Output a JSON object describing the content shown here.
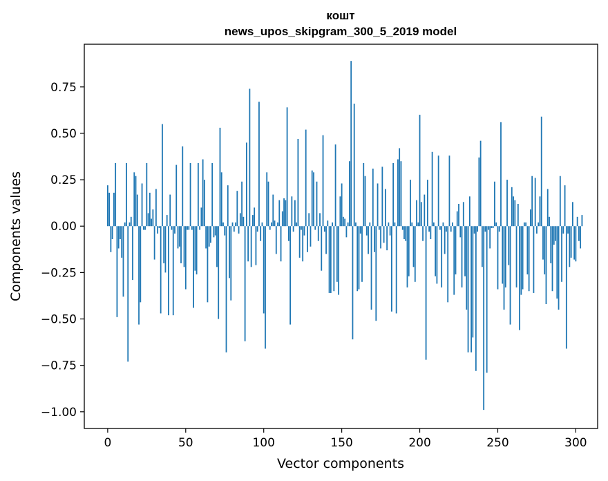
{
  "chart_data": {
    "type": "bar",
    "title_line1": "кошт",
    "title_line2": "news_upos_skipgram_300_5_2019 model",
    "xlabel": "Vector components",
    "ylabel": "Components values",
    "xlim": [
      -15,
      314
    ],
    "ylim": [
      -1.09,
      0.98
    ],
    "x_ticks": [
      0,
      50,
      100,
      150,
      200,
      250,
      300
    ],
    "y_ticks": [
      -1.0,
      -0.75,
      -0.5,
      -0.25,
      0.0,
      0.25,
      0.5,
      0.75
    ],
    "y_tick_labels": [
      "−1.00",
      "−0.75",
      "−0.50",
      "−0.25",
      "0.00",
      "0.25",
      "0.50",
      "0.75"
    ],
    "x_tick_labels": [
      "0",
      "50",
      "100",
      "150",
      "200",
      "250",
      "300"
    ],
    "bar_color": "#1f77b4",
    "values": [
      0.22,
      0.18,
      -0.14,
      -0.07,
      0.18,
      0.34,
      -0.49,
      -0.12,
      -0.07,
      -0.17,
      -0.38,
      0.02,
      0.34,
      -0.73,
      0.02,
      0.05,
      -0.29,
      0.29,
      0.27,
      0.17,
      -0.53,
      -0.41,
      0.23,
      -0.02,
      -0.02,
      0.34,
      0.07,
      0.18,
      0.04,
      0.09,
      -0.18,
      0.2,
      -0.04,
      -0.01,
      -0.47,
      0.55,
      -0.2,
      -0.25,
      0.06,
      -0.48,
      0.17,
      -0.02,
      -0.48,
      -0.04,
      0.33,
      -0.12,
      -0.11,
      -0.2,
      0.43,
      -0.22,
      -0.34,
      -0.02,
      -0.02,
      0.34,
      -0.02,
      -0.44,
      -0.24,
      -0.26,
      0.34,
      -0.02,
      0.1,
      0.36,
      0.25,
      -0.12,
      -0.41,
      -0.11,
      -0.09,
      0.34,
      -0.06,
      -0.05,
      -0.22,
      -0.5,
      0.53,
      0.29,
      0.02,
      -0.05,
      -0.68,
      0.22,
      -0.28,
      -0.4,
      0.02,
      -0.03,
      0.02,
      0.19,
      -0.04,
      0.07,
      0.24,
      0.05,
      -0.62,
      0.45,
      -0.19,
      0.74,
      -0.22,
      0.06,
      0.1,
      -0.21,
      -0.03,
      0.67,
      -0.08,
      0.02,
      -0.47,
      -0.66,
      0.29,
      0.24,
      -0.02,
      0.02,
      0.17,
      0.03,
      -0.15,
      0.02,
      0.14,
      -0.19,
      0.08,
      0.15,
      0.14,
      0.64,
      -0.08,
      -0.53,
      0.16,
      -0.03,
      0.14,
      0.02,
      0.47,
      -0.17,
      -0.02,
      -0.19,
      -0.05,
      0.52,
      -0.14,
      0.07,
      -0.11,
      0.3,
      0.29,
      -0.02,
      0.24,
      -0.08,
      0.07,
      -0.24,
      0.49,
      -0.03,
      -0.15,
      0.03,
      -0.36,
      -0.36,
      0.02,
      -0.35,
      0.44,
      -0.3,
      -0.37,
      0.16,
      0.23,
      0.05,
      0.04,
      -0.06,
      0.02,
      0.35,
      0.89,
      -0.61,
      0.66,
      0.02,
      -0.35,
      -0.34,
      -0.04,
      -0.3,
      0.34,
      0.27,
      -0.05,
      -0.15,
      0.02,
      -0.45,
      0.31,
      -0.14,
      -0.51,
      0.23,
      -0.02,
      -0.12,
      0.32,
      -0.09,
      0.2,
      -0.13,
      0.02,
      -0.05,
      -0.46,
      0.34,
      0.02,
      -0.47,
      0.36,
      0.42,
      0.35,
      -0.02,
      -0.07,
      -0.08,
      -0.33,
      -0.27,
      0.25,
      0.02,
      -0.22,
      -0.3,
      0.14,
      0.02,
      0.6,
      0.13,
      -0.08,
      0.17,
      -0.72,
      0.25,
      -0.03,
      -0.07,
      0.4,
      0.02,
      -0.27,
      -0.31,
      0.38,
      -0.02,
      -0.33,
      0.02,
      -0.15,
      -0.03,
      -0.41,
      0.38,
      -0.03,
      0.02,
      -0.37,
      -0.26,
      0.08,
      0.12,
      -0.06,
      -0.33,
      0.13,
      -0.27,
      -0.45,
      -0.68,
      0.16,
      -0.68,
      -0.6,
      -0.04,
      -0.78,
      -0.03,
      0.37,
      0.46,
      -0.22,
      -0.99,
      -0.03,
      -0.79,
      -0.02,
      -0.12,
      -0.01,
      -0.01,
      0.24,
      0.02,
      -0.34,
      -0.03,
      0.56,
      -0.31,
      -0.45,
      -0.33,
      0.25,
      -0.21,
      -0.53,
      0.21,
      0.16,
      0.14,
      -0.33,
      0.12,
      -0.56,
      -0.37,
      -0.34,
      0.02,
      0.02,
      -0.26,
      -0.35,
      0.09,
      0.27,
      -0.36,
      0.26,
      -0.04,
      0.02,
      0.16,
      0.59,
      -0.18,
      -0.26,
      -0.42,
      0.2,
      0.05,
      -0.2,
      -0.35,
      -0.1,
      -0.08,
      -0.39,
      -0.45,
      0.27,
      -0.3,
      -0.04,
      0.22,
      -0.66,
      -0.04,
      -0.22,
      -0.17,
      0.13,
      -0.18,
      -0.19,
      0.05,
      -0.08,
      -0.12,
      0.06
    ]
  }
}
